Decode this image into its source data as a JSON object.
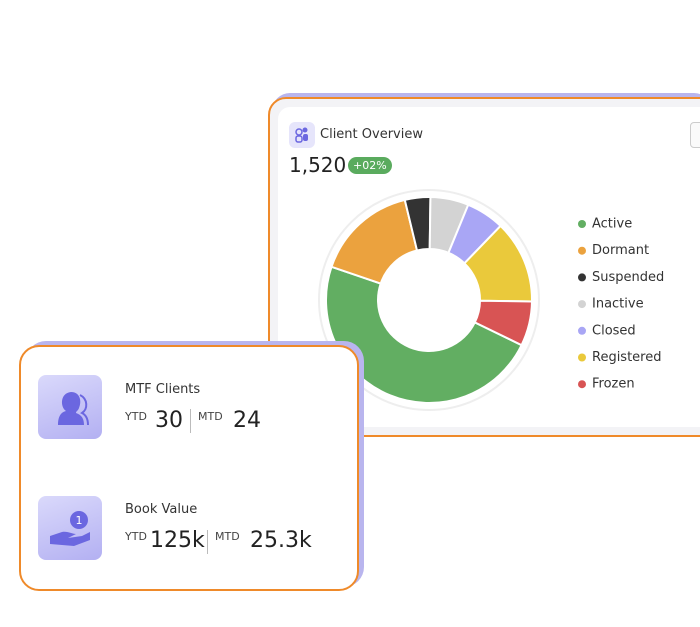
{
  "overview": {
    "title": "Client Overview",
    "total": "1,520",
    "change": "+02%"
  },
  "chart_data": {
    "type": "pie",
    "donut": true,
    "categories": [
      "Active",
      "Dormant",
      "Suspended",
      "Inactive",
      "Closed",
      "Registered",
      "Frozen"
    ],
    "values": [
      48,
      16,
      4,
      6,
      6,
      13,
      7
    ],
    "colors": [
      "#62ae62",
      "#eba23e",
      "#333333",
      "#d3d3d3",
      "#a9a6f5",
      "#eac93b",
      "#d85454"
    ],
    "legend": "right"
  },
  "cards": [
    {
      "title": "MTF Clients",
      "ytd_label": "YTD",
      "ytd": 30,
      "mtd_label": "MTD",
      "mtd": 24
    },
    {
      "title": "Book Value",
      "ytd_label": "YTD",
      "ytd": "125k",
      "mtd_label": "MTD",
      "mtd": "25.3k"
    }
  ]
}
